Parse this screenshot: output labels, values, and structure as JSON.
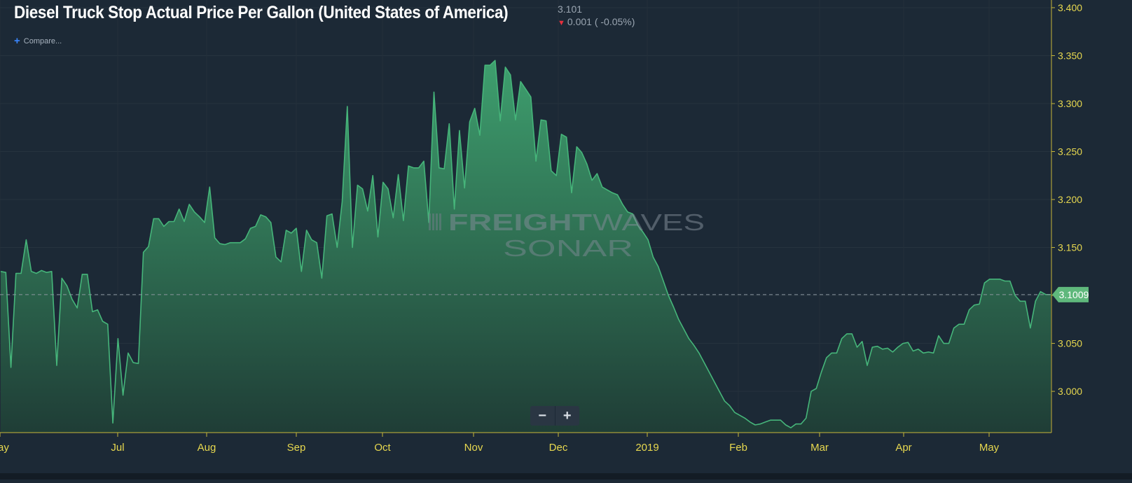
{
  "header": {
    "title": "Diesel Truck Stop Actual Price Per Gallon (United States of America)",
    "last_value": "3.101",
    "change": "0.001 ( -0.05%)",
    "change_direction": "down"
  },
  "toolbar": {
    "compare_label": "Compare..."
  },
  "zoom": {
    "minus_label": "−",
    "plus_label": "+"
  },
  "watermark": {
    "line1_bold": "FREIGHT",
    "line1_light": "WAVES",
    "line2": "SONAR"
  },
  "colors": {
    "background": "#1c2936",
    "line": "#46b57a",
    "fill_top": "#3d9b6c",
    "fill_bottom": "#1f3f37",
    "axis_text": "#e7d84f",
    "badge": "#5fb87c",
    "down_arrow": "#e8303d"
  },
  "chart_data": {
    "type": "area",
    "title": "Diesel Truck Stop Actual Price Per Gallon (United States of America)",
    "xlabel": "",
    "ylabel": "",
    "x_ticks": [
      "ay",
      "Jul",
      "Aug",
      "Sep",
      "Oct",
      "Nov",
      "Dec",
      "2019",
      "Feb",
      "Mar",
      "Apr",
      "May"
    ],
    "y_ticks": [
      "3.000",
      "3.050",
      "3.100",
      "3.150",
      "3.200",
      "3.250",
      "3.300",
      "3.350",
      "3.400"
    ],
    "ylim": [
      2.957,
      3.408
    ],
    "current_value_label": "3.1009",
    "current_value": 3.1009,
    "grid": true,
    "series": [
      {
        "values": [
          3.125,
          3.124,
          3.025,
          3.123,
          3.123,
          3.158,
          3.125,
          3.123,
          3.126,
          3.124,
          3.125,
          3.027,
          3.118,
          3.11,
          3.096,
          3.087,
          3.122,
          3.122,
          3.083,
          3.085,
          3.073,
          3.07,
          2.967,
          3.055,
          2.996,
          3.04,
          3.03,
          3.029,
          3.145,
          3.151,
          3.18,
          3.18,
          3.172,
          3.177,
          3.177,
          3.19,
          3.177,
          3.195,
          3.187,
          3.182,
          3.176,
          3.213,
          3.16,
          3.154,
          3.153,
          3.155,
          3.155,
          3.155,
          3.159,
          3.17,
          3.172,
          3.184,
          3.182,
          3.176,
          3.14,
          3.135,
          3.168,
          3.165,
          3.17,
          3.125,
          3.168,
          3.158,
          3.155,
          3.118,
          3.183,
          3.185,
          3.15,
          3.198,
          3.297,
          3.15,
          3.215,
          3.211,
          3.188,
          3.225,
          3.161,
          3.218,
          3.211,
          3.181,
          3.226,
          3.178,
          3.235,
          3.233,
          3.233,
          3.24,
          3.176,
          3.312,
          3.233,
          3.232,
          3.279,
          3.19,
          3.272,
          3.212,
          3.281,
          3.295,
          3.267,
          3.34,
          3.34,
          3.345,
          3.282,
          3.338,
          3.33,
          3.283,
          3.323,
          3.315,
          3.307,
          3.24,
          3.283,
          3.282,
          3.23,
          3.225,
          3.268,
          3.265,
          3.207,
          3.255,
          3.249,
          3.237,
          3.22,
          3.227,
          3.213,
          3.21,
          3.207,
          3.205,
          3.195,
          3.187,
          3.185,
          3.173,
          3.166,
          3.158,
          3.14,
          3.13,
          3.115,
          3.1,
          3.088,
          3.075,
          3.065,
          3.055,
          3.048,
          3.04,
          3.03,
          3.02,
          3.01,
          3.0,
          2.99,
          2.985,
          2.978,
          2.975,
          2.972,
          2.968,
          2.965,
          2.966,
          2.968,
          2.97,
          2.97,
          2.97,
          2.965,
          2.962,
          2.966,
          2.966,
          2.972,
          3.0,
          3.003,
          3.02,
          3.035,
          3.04,
          3.04,
          3.055,
          3.06,
          3.06,
          3.046,
          3.052,
          3.027,
          3.046,
          3.047,
          3.044,
          3.045,
          3.041,
          3.046,
          3.05,
          3.051,
          3.042,
          3.044,
          3.04,
          3.041,
          3.04,
          3.058,
          3.05,
          3.05,
          3.066,
          3.07,
          3.07,
          3.085,
          3.09,
          3.091,
          3.113,
          3.117,
          3.117,
          3.117,
          3.115,
          3.115,
          3.1,
          3.094,
          3.094,
          3.066,
          3.094,
          3.104,
          3.101,
          3.1009
        ]
      }
    ]
  }
}
